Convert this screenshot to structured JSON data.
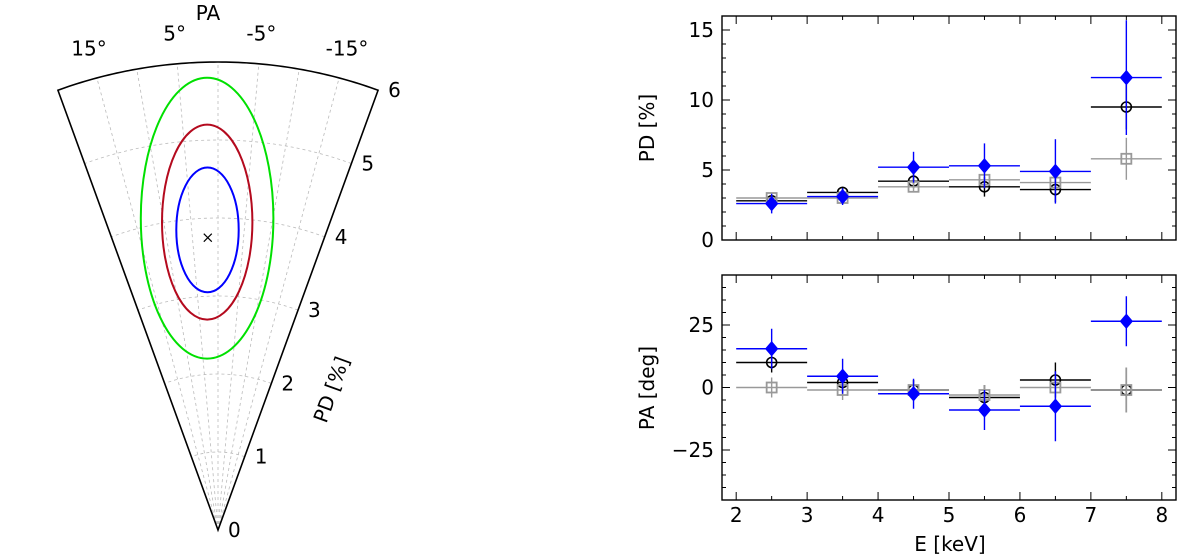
{
  "chart_data": [
    {
      "type": "polar-contour",
      "title": "PA",
      "rlabel": "PD [%]",
      "r_ticks": [
        0,
        1,
        2,
        3,
        4,
        5,
        6
      ],
      "theta_ticks": [
        15,
        5,
        -5,
        -15
      ],
      "theta_tick_labels": [
        "15°",
        "5°",
        "-5°",
        "-15°"
      ],
      "theta_range": [
        -20,
        20
      ],
      "r_range": [
        0,
        6
      ],
      "grid": true,
      "best_fit": {
        "pa": 2,
        "pd": 3.75,
        "marker": "x"
      },
      "contours": [
        {
          "color": "#0000ff",
          "center_pa": 2,
          "center_pd": 3.85,
          "half_width_pd": 0.4,
          "half_height_pd": 0.8
        },
        {
          "color": "#b40a1e",
          "center_pa": 2,
          "center_pd": 3.95,
          "half_width_pd": 0.58,
          "half_height_pd": 1.25
        },
        {
          "color": "#00e000",
          "center_pa": 2,
          "center_pd": 4.0,
          "half_width_pd": 0.85,
          "half_height_pd": 1.8
        }
      ]
    },
    {
      "type": "scatter",
      "xlabel": "",
      "ylabel": "PD [%]",
      "xlim": [
        1.8,
        8.2
      ],
      "ylim": [
        0,
        16
      ],
      "yticks": [
        0,
        5,
        10,
        15
      ],
      "series": [
        {
          "color": "#000000",
          "marker": "circle",
          "x": [
            2.5,
            3.5,
            4.5,
            5.5,
            6.5,
            7.5
          ],
          "xerr": [
            0.5,
            0.5,
            0.5,
            0.5,
            0.5,
            0.5
          ],
          "y": [
            2.8,
            3.4,
            4.2,
            3.8,
            3.6,
            9.5
          ],
          "yerr": [
            0.4,
            0.4,
            0.5,
            0.7,
            0.9,
            1.6
          ]
        },
        {
          "color": "#999999",
          "marker": "square",
          "x": [
            2.5,
            3.5,
            4.5,
            5.5,
            6.5,
            7.5
          ],
          "xerr": [
            0.5,
            0.5,
            0.5,
            0.5,
            0.5,
            0.5
          ],
          "y": [
            3.0,
            3.0,
            3.8,
            4.3,
            4.1,
            5.8
          ],
          "yerr": [
            0.3,
            0.3,
            0.4,
            0.5,
            0.7,
            1.5
          ]
        },
        {
          "color": "#0000ff",
          "marker": "diamond",
          "x": [
            2.5,
            3.5,
            4.5,
            5.5,
            6.5,
            7.5
          ],
          "xerr": [
            0.5,
            0.5,
            0.5,
            0.5,
            0.5,
            0.5
          ],
          "y": [
            2.6,
            3.1,
            5.2,
            5.3,
            4.9,
            11.6
          ],
          "yerr": [
            0.7,
            0.6,
            1.1,
            1.6,
            2.3,
            4.1
          ]
        }
      ]
    },
    {
      "type": "scatter",
      "xlabel": "E [keV]",
      "ylabel": "PA [deg]",
      "xlim": [
        1.8,
        8.2
      ],
      "ylim": [
        -45,
        45
      ],
      "xticks": [
        2,
        3,
        4,
        5,
        6,
        7,
        8
      ],
      "yticks": [
        -25,
        0,
        25
      ],
      "ytick_labels": [
        "−25",
        "0",
        "25"
      ],
      "series": [
        {
          "color": "#000000",
          "marker": "circle",
          "x": [
            2.5,
            3.5,
            4.5,
            5.5,
            6.5,
            7.5
          ],
          "xerr": [
            0.5,
            0.5,
            0.5,
            0.5,
            0.5,
            0.5
          ],
          "y": [
            10,
            2,
            -1,
            -4,
            3,
            -1
          ],
          "yerr": [
            4,
            4,
            4,
            5,
            7,
            9
          ]
        },
        {
          "color": "#999999",
          "marker": "square",
          "x": [
            2.5,
            3.5,
            4.5,
            5.5,
            6.5,
            7.5
          ],
          "xerr": [
            0.5,
            0.5,
            0.5,
            0.5,
            0.5,
            0.5
          ],
          "y": [
            0,
            -1,
            -1,
            -3,
            0,
            -1
          ],
          "yerr": [
            4,
            4,
            3,
            4,
            5,
            9
          ]
        },
        {
          "color": "#0000ff",
          "marker": "diamond",
          "x": [
            2.5,
            3.5,
            4.5,
            5.5,
            6.5,
            7.5
          ],
          "xerr": [
            0.5,
            0.5,
            0.5,
            0.5,
            0.5,
            0.5
          ],
          "y": [
            15.5,
            4.5,
            -2.5,
            -9,
            -7.5,
            26.5
          ],
          "yerr": [
            8,
            7,
            6,
            8,
            14,
            10
          ]
        }
      ]
    }
  ]
}
